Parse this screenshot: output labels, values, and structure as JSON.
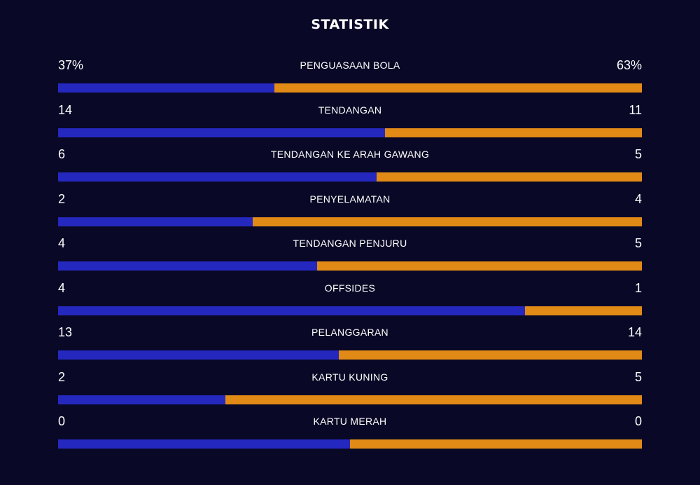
{
  "title": "STATISTIK",
  "colors": {
    "background": "#090826",
    "home": "#2528bf",
    "away": "#e28a16",
    "text": "#ffffff"
  },
  "stats": [
    {
      "label": "PENGUASAAN BOLA",
      "home": "37%",
      "away": "63%",
      "home_share": 0.37
    },
    {
      "label": "TENDANGAN",
      "home": "14",
      "away": "11",
      "home_share": 0.56
    },
    {
      "label": "TENDANGAN KE ARAH GAWANG",
      "home": "6",
      "away": "5",
      "home_share": 0.545
    },
    {
      "label": "PENYELAMATAN",
      "home": "2",
      "away": "4",
      "home_share": 0.333
    },
    {
      "label": "TENDANGAN PENJURU",
      "home": "4",
      "away": "5",
      "home_share": 0.444
    },
    {
      "label": "OFFSIDES",
      "home": "4",
      "away": "1",
      "home_share": 0.8
    },
    {
      "label": "PELANGGARAN",
      "home": "13",
      "away": "14",
      "home_share": 0.481
    },
    {
      "label": "KARTU KUNING",
      "home": "2",
      "away": "5",
      "home_share": 0.286
    },
    {
      "label": "KARTU MERAH",
      "home": "0",
      "away": "0",
      "home_share": 0.5
    }
  ]
}
